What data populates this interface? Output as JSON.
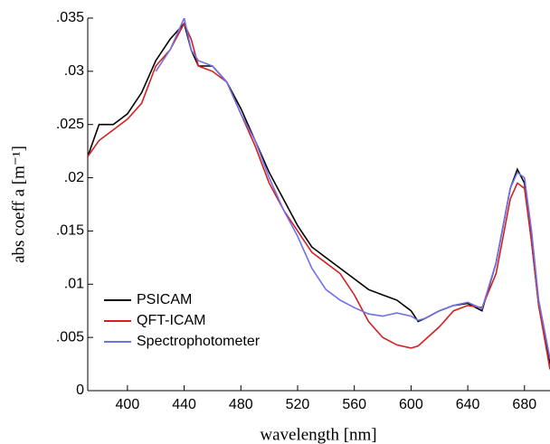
{
  "chart_data": {
    "type": "line",
    "xlabel": "wavelength [nm]",
    "ylabel": "abs coeff a [m⁻¹]",
    "x": [
      372,
      380,
      390,
      400,
      410,
      420,
      430,
      440,
      445,
      450,
      460,
      470,
      480,
      490,
      500,
      510,
      520,
      530,
      540,
      550,
      560,
      570,
      580,
      590,
      600,
      605,
      610,
      620,
      630,
      640,
      650,
      660,
      670,
      675,
      680,
      685,
      690,
      698
    ],
    "series": [
      {
        "name": "PSICAM",
        "color": "#000000",
        "values": [
          0.022,
          0.025,
          0.025,
          0.026,
          0.028,
          0.031,
          0.033,
          0.0345,
          0.032,
          0.0305,
          0.0305,
          0.029,
          0.0265,
          0.0235,
          0.0205,
          0.018,
          0.0155,
          0.0135,
          0.0125,
          0.0115,
          0.0105,
          0.0095,
          0.009,
          0.0085,
          0.0075,
          0.0065,
          0.0068,
          0.0075,
          0.008,
          0.0082,
          0.0075,
          0.012,
          0.019,
          0.0208,
          0.0195,
          0.014,
          0.008,
          0.0025
        ]
      },
      {
        "name": "QFT-ICAM",
        "color": "#d42020",
        "values": [
          0.022,
          0.0235,
          0.0245,
          0.0255,
          0.027,
          0.0305,
          0.032,
          0.0345,
          0.033,
          0.0305,
          0.03,
          0.029,
          0.026,
          0.023,
          0.0195,
          0.017,
          0.015,
          0.013,
          0.012,
          0.011,
          0.009,
          0.0065,
          0.005,
          0.0043,
          0.004,
          0.0042,
          0.0048,
          0.006,
          0.0075,
          0.008,
          0.0078,
          0.011,
          0.018,
          0.0195,
          0.019,
          0.014,
          0.008,
          0.002
        ]
      },
      {
        "name": "Spectrophotometer",
        "color": "#7070e8",
        "values": [
          null,
          null,
          null,
          null,
          null,
          0.03,
          0.032,
          0.035,
          0.032,
          0.031,
          0.0305,
          0.029,
          0.026,
          0.0235,
          0.02,
          0.017,
          0.0145,
          0.0115,
          0.0095,
          0.0085,
          0.0078,
          0.0072,
          0.007,
          0.0073,
          0.007,
          0.0066,
          0.0068,
          0.0075,
          0.008,
          0.0083,
          0.0077,
          0.012,
          0.019,
          0.0205,
          0.02,
          0.015,
          0.0085,
          0.003
        ]
      }
    ],
    "xlim": [
      372,
      698
    ],
    "xticks": [
      400,
      440,
      480,
      520,
      560,
      600,
      640,
      680
    ],
    "ylim": [
      0,
      0.035
    ],
    "yticks": [
      0,
      {
        "value": 0.005,
        "label": ".005"
      },
      {
        "value": 0.01,
        "label": ".01"
      },
      {
        "value": 0.015,
        "label": ".015"
      },
      {
        "value": 0.02,
        "label": ".02"
      },
      {
        "value": 0.025,
        "label": ".025"
      },
      {
        "value": 0.03,
        "label": ".03"
      },
      {
        "value": 0.035,
        "label": ".035"
      }
    ],
    "legend": "lower-left"
  }
}
